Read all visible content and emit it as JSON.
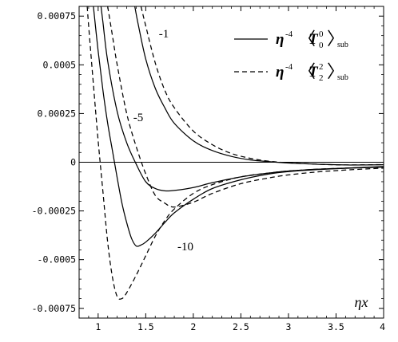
{
  "chart_data": {
    "type": "line",
    "xlabel": "ηx",
    "xlim": [
      0.8,
      4.0
    ],
    "ylim": [
      -0.0008,
      0.0008
    ],
    "x_ticks": [
      1,
      1.5,
      2,
      2.5,
      3,
      3.5,
      4
    ],
    "x_tick_labels": [
      "1",
      "1.5",
      "2",
      "2.5",
      "3",
      "3.5",
      "4"
    ],
    "y_ticks": [
      0.00075,
      0.0005,
      0.00025,
      0,
      -0.00025,
      -0.0005,
      -0.00075
    ],
    "y_tick_labels": [
      "0.00075",
      "0.0005",
      "0.00025",
      "0",
      "-0.00025",
      "-0.0005",
      "-0.00075"
    ],
    "legend": {
      "position": "top-right",
      "entries": [
        {
          "style": "solid",
          "prefix": "η",
          "prefix_exp": "-4",
          "symbol": "T",
          "sup": "0",
          "sub": "0",
          "tail": "sub"
        },
        {
          "style": "dashed",
          "prefix": "η",
          "prefix_exp": "-4",
          "symbol": "T",
          "sup": "2",
          "sub": "2",
          "tail": "sub"
        }
      ]
    },
    "annotations": [
      "-1",
      "-5",
      "-10"
    ],
    "series": [
      {
        "group": "-1",
        "style": "solid",
        "x": [
          1.385,
          1.42,
          1.5,
          1.6,
          1.7,
          1.8,
          2.0,
          2.2,
          2.4,
          2.6,
          2.8,
          3.0,
          3.3,
          3.6,
          4.0
        ],
        "y": [
          0.0008,
          0.00071,
          0.00053,
          0.00038,
          0.00028,
          0.0002,
          0.00011,
          6e-05,
          3e-05,
          1.2e-05,
          3e-06,
          -4e-06,
          -1e-05,
          -1.4e-05,
          -1.3e-05
        ]
      },
      {
        "group": "-1",
        "style": "dashed",
        "x": [
          1.45,
          1.5,
          1.6,
          1.7,
          1.8,
          2.0,
          2.2,
          2.4,
          2.6,
          2.8,
          3.0,
          3.3,
          3.6,
          4.0
        ],
        "y": [
          0.0008,
          0.0007,
          0.00051,
          0.00037,
          0.00028,
          0.00016,
          9e-05,
          4.5e-05,
          2e-05,
          5e-06,
          -3e-06,
          -1e-05,
          -1.4e-05,
          -1.2e-05
        ]
      },
      {
        "group": "-5",
        "style": "solid",
        "x": [
          1.03,
          1.05,
          1.1,
          1.2,
          1.3,
          1.4,
          1.5,
          1.6,
          1.7,
          1.8,
          2.0,
          2.2,
          2.5,
          2.8,
          3.0,
          3.3,
          3.6,
          4.0
        ],
        "y": [
          0.0008,
          0.00072,
          0.00052,
          0.00026,
          0.0001,
          -1e-05,
          -0.0001,
          -0.000135,
          -0.000147,
          -0.000145,
          -0.00013,
          -0.000105,
          -7.5e-05,
          -5.5e-05,
          -4.5e-05,
          -3.6e-05,
          -3e-05,
          -2.2e-05
        ]
      },
      {
        "group": "-5",
        "style": "dashed",
        "x": [
          1.1,
          1.15,
          1.2,
          1.3,
          1.4,
          1.5,
          1.6,
          1.7,
          1.8,
          2.0,
          2.2,
          2.5,
          2.8,
          3.0,
          3.3,
          3.6,
          4.0
        ],
        "y": [
          0.0008,
          0.00065,
          0.0005,
          0.00025,
          8e-05,
          -6e-05,
          -0.00017,
          -0.00021,
          -0.00023,
          -0.000205,
          -0.00016,
          -0.00011,
          -8e-05,
          -6.5e-05,
          -5e-05,
          -4e-05,
          -3e-05
        ]
      },
      {
        "group": "-10",
        "style": "solid",
        "x": [
          0.95,
          1.0,
          1.05,
          1.1,
          1.15,
          1.2,
          1.25,
          1.3,
          1.35,
          1.4,
          1.45,
          1.5,
          1.6,
          1.7,
          1.8,
          2.0,
          2.2,
          2.5,
          2.8,
          3.0,
          3.3,
          3.6,
          4.0
        ],
        "y": [
          0.0008,
          0.00057,
          0.00037,
          0.0002,
          6e-05,
          -8e-05,
          -0.00021,
          -0.00031,
          -0.00039,
          -0.00043,
          -0.000425,
          -0.00041,
          -0.000365,
          -0.00031,
          -0.00026,
          -0.00019,
          -0.000135,
          -9e-05,
          -6e-05,
          -4.8e-05,
          -3.8e-05,
          -3.1e-05,
          -2.5e-05
        ]
      },
      {
        "group": "-10",
        "style": "dashed",
        "x": [
          0.885,
          0.9,
          0.95,
          1.0,
          1.05,
          1.1,
          1.15,
          1.2,
          1.25,
          1.3,
          1.4,
          1.5,
          1.6,
          1.7,
          1.8,
          2.0,
          2.2,
          2.5,
          2.8,
          3.0,
          3.3,
          3.6,
          4.0
        ],
        "y": [
          0.0008,
          0.0007,
          0.0004,
          0.00011,
          -0.00015,
          -0.00041,
          -0.00059,
          -0.00069,
          -0.0007,
          -0.00067,
          -0.00058,
          -0.00048,
          -0.00038,
          -0.0003,
          -0.00024,
          -0.00016,
          -0.000115,
          -7.5e-05,
          -5.5e-05,
          -4.5e-05,
          -3.6e-05,
          -3e-05,
          -2.4e-05
        ]
      }
    ]
  }
}
